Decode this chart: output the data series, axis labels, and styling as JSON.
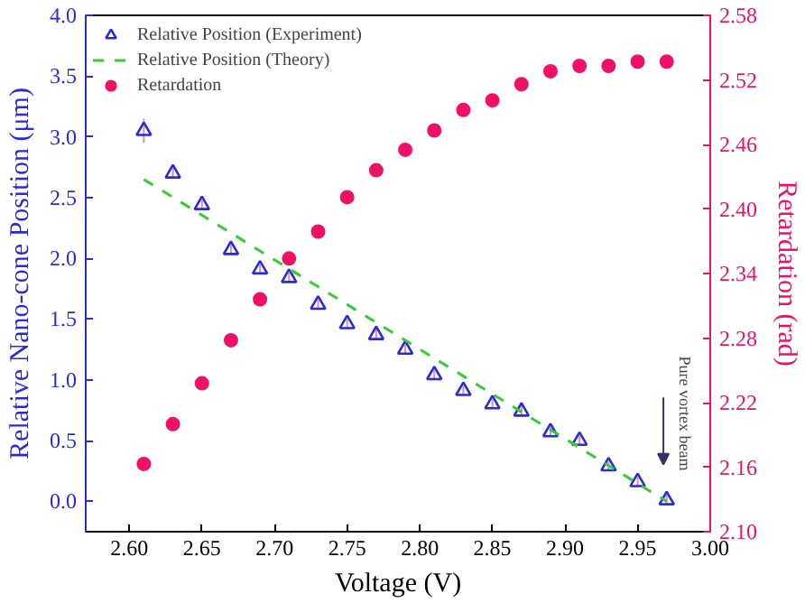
{
  "chart_data": {
    "type": "scatter",
    "xlabel": "Voltage (V)",
    "ylabel": "Relative Nano-cone Position (μm)",
    "y2label": "Retardation (rad)",
    "xlim": [
      2.57,
      3.0
    ],
    "xticks": [
      {
        "value": 2.6,
        "label": "2.60"
      },
      {
        "value": 2.65,
        "label": "2.65"
      },
      {
        "value": 2.7,
        "label": "2.70"
      },
      {
        "value": 2.75,
        "label": "2.75"
      },
      {
        "value": 2.8,
        "label": "2.80"
      },
      {
        "value": 2.85,
        "label": "2.85"
      },
      {
        "value": 2.9,
        "label": "2.90"
      },
      {
        "value": 2.95,
        "label": "2.95"
      },
      {
        "value": 3.0,
        "label": "3.00"
      }
    ],
    "ylim": [
      -0.25,
      4.0
    ],
    "yticks": [
      {
        "value": 0,
        "label": "0.0"
      },
      {
        "value": 0.5,
        "label": "0.5"
      },
      {
        "value": 1,
        "label": "1.0"
      },
      {
        "value": 1.5,
        "label": "1.5"
      },
      {
        "value": 2,
        "label": "2.0"
      },
      {
        "value": 2.5,
        "label": "2.5"
      },
      {
        "value": 3,
        "label": "3.0"
      },
      {
        "value": 3.5,
        "label": "3.5"
      },
      {
        "value": 4,
        "label": "4.0"
      }
    ],
    "y2lim": [
      2.1,
      2.58
    ],
    "y2ticks": [
      {
        "value": 2.1,
        "label": "2.10"
      },
      2.16,
      2.22,
      2.28,
      2.34,
      {
        "value": 2.4,
        "label": "2.40"
      },
      2.46,
      2.52,
      2.58
    ],
    "legend": "top left",
    "grid": false,
    "series": [
      {
        "name": "Relative Position (Experiment)",
        "marker": "triangle",
        "color": "#2b2bd6",
        "x": [
          2.61,
          2.63,
          2.65,
          2.67,
          2.69,
          2.71,
          2.73,
          2.75,
          2.77,
          2.79,
          2.81,
          2.83,
          2.85,
          2.87,
          2.89,
          2.91,
          2.93,
          2.95,
          2.97
        ],
        "values": [
          3.05,
          2.7,
          2.44,
          2.07,
          1.91,
          1.84,
          1.62,
          1.46,
          1.37,
          1.25,
          1.04,
          0.91,
          0.8,
          0.74,
          0.57,
          0.5,
          0.29,
          0.16,
          0.01
        ],
        "errors": [
          0.1,
          0.04,
          0.04,
          0.04,
          0.04,
          0.04,
          0.04,
          0.04,
          0.04,
          0.04,
          0.04,
          0.04,
          0.04,
          0.04,
          0.04,
          0.04,
          0.04,
          0.04,
          0.04
        ]
      },
      {
        "name": "Relative Position (Theory)",
        "type": "line",
        "line_style": "dashed",
        "color": "#33cc33",
        "x": [
          2.61,
          2.97
        ],
        "values": [
          2.65,
          0.0
        ]
      },
      {
        "name": "Retardation",
        "marker": "circle",
        "axis": "y2",
        "color": "#ee1166",
        "x": [
          2.61,
          2.63,
          2.65,
          2.67,
          2.69,
          2.71,
          2.73,
          2.75,
          2.77,
          2.79,
          2.81,
          2.83,
          2.85,
          2.87,
          2.89,
          2.91,
          2.93,
          2.95,
          2.97
        ],
        "values": [
          2.163,
          2.2,
          2.238,
          2.278,
          2.316,
          2.354,
          2.379,
          2.411,
          2.436,
          2.455,
          2.473,
          2.492,
          2.501,
          2.516,
          2.528,
          2.533,
          2.533,
          2.537,
          2.537
        ]
      }
    ],
    "annotations": [
      "Pure vortex beam"
    ]
  }
}
